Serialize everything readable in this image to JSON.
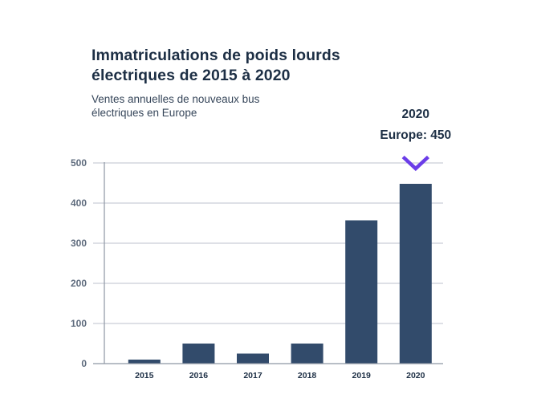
{
  "title_lines": [
    "Immatriculations de poids lourds",
    "électriques de 2015 à 2020"
  ],
  "subtitle_lines": [
    "Ventes annuelles de nouveaux bus",
    "électriques en Europe"
  ],
  "highlight": {
    "year_label": "2020",
    "value_label": "Europe: 450",
    "category": "2020",
    "marker": "chevron-down-icon",
    "marker_color": "#6b3de8"
  },
  "colors": {
    "bar": "#324b6b",
    "gridline": "#bcc2cc",
    "axis": "#8e96a3"
  },
  "chart_data": {
    "type": "bar",
    "title": "Immatriculations de poids lourds électriques de 2015 à 2020",
    "subtitle": "Ventes annuelles de nouveaux bus électriques en Europe",
    "xlabel": "",
    "ylabel": "",
    "categories": [
      "2015",
      "2016",
      "2017",
      "2018",
      "2019",
      "2020"
    ],
    "values": [
      10,
      50,
      25,
      50,
      357,
      448
    ],
    "ylim": [
      0,
      500
    ],
    "yticks": [
      0,
      100,
      200,
      300,
      400,
      500
    ],
    "grid": true,
    "legend": "none"
  }
}
